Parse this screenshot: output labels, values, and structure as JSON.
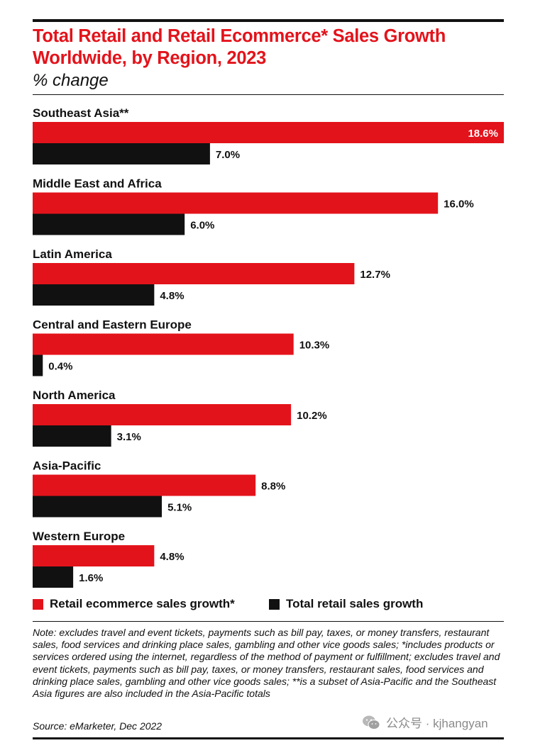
{
  "title": "Total Retail and Retail Ecommerce* Sales Growth Worldwide, by Region, 2023",
  "subtitle": "% change",
  "colors": {
    "ecommerce": "#e3131b",
    "total": "#111111",
    "title": "#e3131b"
  },
  "chart_data": {
    "type": "bar",
    "orientation": "horizontal",
    "categories": [
      "Southeast Asia**",
      "Middle East and Africa",
      "Latin America",
      "Central and Eastern Europe",
      "North America",
      "Asia-Pacific",
      "Western Europe"
    ],
    "series": [
      {
        "name": "Retail ecommerce sales growth*",
        "color": "#e3131b",
        "values": [
          18.6,
          16.0,
          12.7,
          10.3,
          10.2,
          8.8,
          4.8
        ],
        "labels": [
          "18.6%",
          "16.0%",
          "12.7%",
          "10.3%",
          "10.2%",
          "8.8%",
          "4.8%"
        ]
      },
      {
        "name": "Total retail sales growth",
        "color": "#111111",
        "values": [
          7.0,
          6.0,
          4.8,
          0.4,
          3.1,
          5.1,
          1.6
        ],
        "labels": [
          "7.0%",
          "6.0%",
          "4.8%",
          "0.4%",
          "3.1%",
          "5.1%",
          "1.6%"
        ]
      }
    ],
    "xlim": [
      0,
      18.6
    ],
    "grid": false,
    "legend": "bottom-left"
  },
  "legend": {
    "ecommerce_label": "Retail ecommerce sales growth*",
    "total_label": "Total retail sales growth"
  },
  "note": "Note: excludes travel and event tickets, payments such as bill pay, taxes, or money transfers, restaurant sales, food services and drinking place sales, gambling and other vice goods sales; *includes products or services ordered using the internet, regardless of the method of payment or fulfillment; excludes travel and event tickets, payments such as bill pay, taxes, or money transfers, restaurant sales, food services and drinking place sales, gambling and other vice goods sales; **is a subset of Asia-Pacific and the Southeast Asia figures are also included in the Asia-Pacific totals",
  "source": "Source: eMarketer, Dec 2022",
  "watermark": {
    "text": "公众号 · kjhangyan",
    "icon": "wechat-icon"
  }
}
